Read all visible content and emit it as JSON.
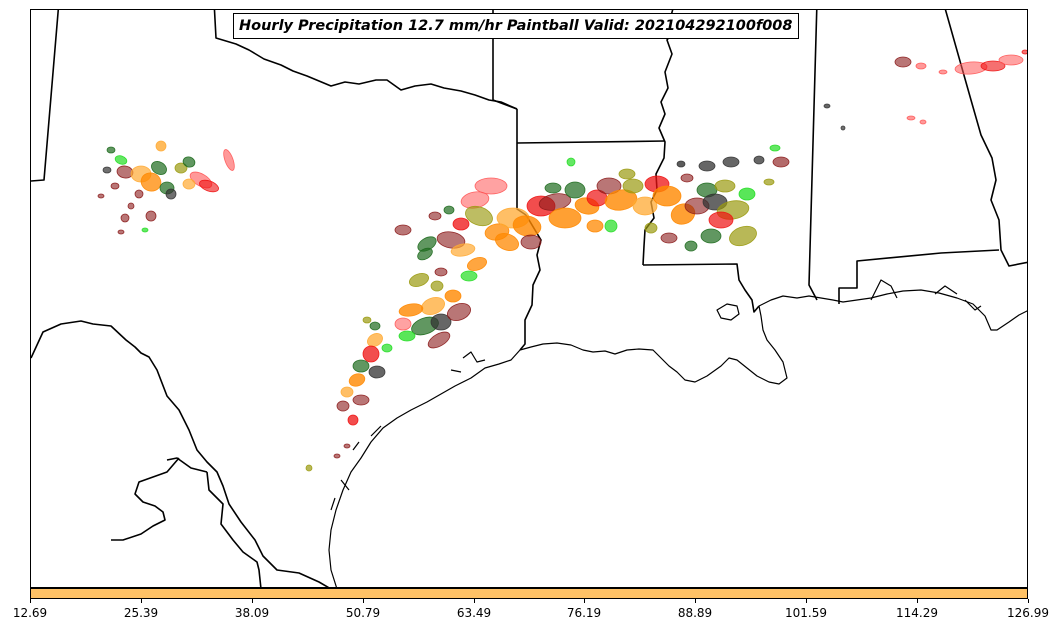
{
  "title": "Hourly Precipitation 12.7 mm/hr Paintball Valid: 202104292100f008",
  "colors": {
    "dark_green": "#1e6b1e",
    "bright_green": "#22dd22",
    "olive": "#9a9a10",
    "orange": "#ff8800",
    "light_orange": "#ffaa33",
    "red": "#ee1111",
    "light_red": "#ff5555",
    "maroon": "#8b1a1a",
    "dark_gray": "#333333",
    "colorbar_fill": "#ffc266"
  },
  "colorbar": {
    "tick_labels": [
      "12.69",
      "25.39",
      "38.09",
      "50.79",
      "63.49",
      "76.19",
      "88.89",
      "101.59",
      "114.29",
      "126.99"
    ]
  }
}
